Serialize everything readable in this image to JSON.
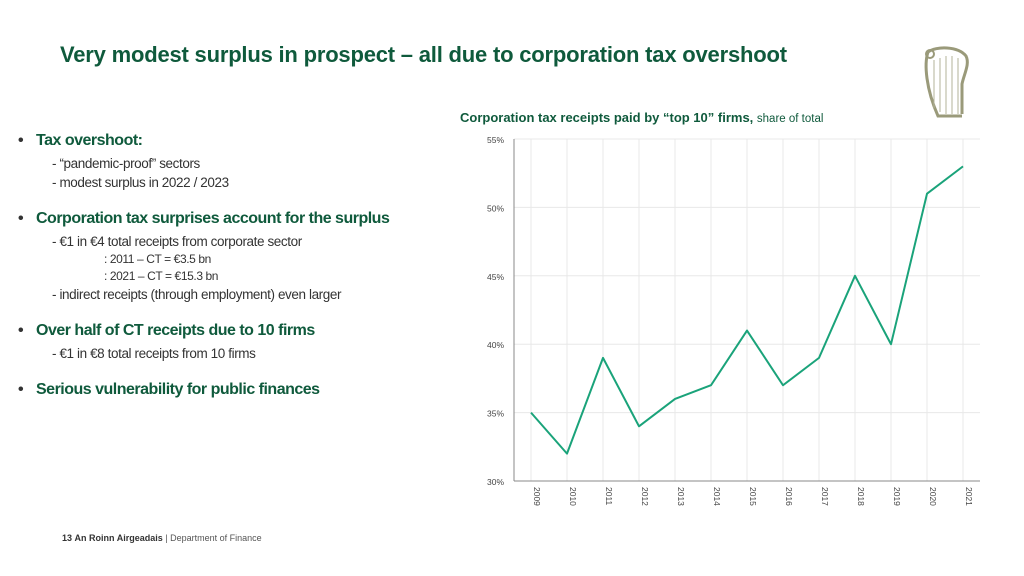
{
  "slide": {
    "title": "Very modest surplus in prospect – all due to corporation tax overshoot",
    "logo_icon": "harp-icon"
  },
  "bullets": [
    {
      "heading": "Tax overshoot:",
      "items": [
        {
          "text": "- “pandemic-proof” sectors",
          "level": 1
        },
        {
          "text": "- modest surplus in 2022 / 2023",
          "level": 1
        }
      ]
    },
    {
      "heading": "Corporation tax surprises account for the surplus",
      "items": [
        {
          "text": "- €1 in €4 total receipts from corporate sector",
          "level": 1
        },
        {
          "text": ": 2011 – CT = €3.5 bn",
          "level": 2
        },
        {
          "text": ": 2021 – CT = €15.3 bn",
          "level": 2
        },
        {
          "text": "- indirect receipts (through employment) even larger",
          "level": 1
        }
      ]
    },
    {
      "heading": "Over half of CT receipts due to 10 firms",
      "items": [
        {
          "text": "- €1 in €8 total receipts from 10 firms",
          "level": 1
        }
      ]
    },
    {
      "heading": "Serious vulnerability for public finances",
      "items": []
    }
  ],
  "chart_data": {
    "type": "line",
    "title": "Corporation tax receipts paid by “top 10” firms,",
    "subtitle": "share of total",
    "x": [
      "2009",
      "2010",
      "2011",
      "2012",
      "2013",
      "2014",
      "2015",
      "2016",
      "2017",
      "2018",
      "2019",
      "2020",
      "2021"
    ],
    "series": [
      {
        "values": [
          35,
          32,
          39,
          34,
          36,
          37,
          41,
          37,
          39,
          45,
          40,
          51,
          53
        ]
      }
    ],
    "ylim": [
      30,
      55
    ],
    "yticks": [
      "30%",
      "35%",
      "40%",
      "45%",
      "50%",
      "55%"
    ],
    "grid": true,
    "line_color": "#1aa37a",
    "grid_color": "#e8e8e8"
  },
  "footer": {
    "page_number": "13",
    "org_irish": "An Roinn Airgeadais",
    "separator": "|",
    "org_english": "Department of Finance"
  }
}
